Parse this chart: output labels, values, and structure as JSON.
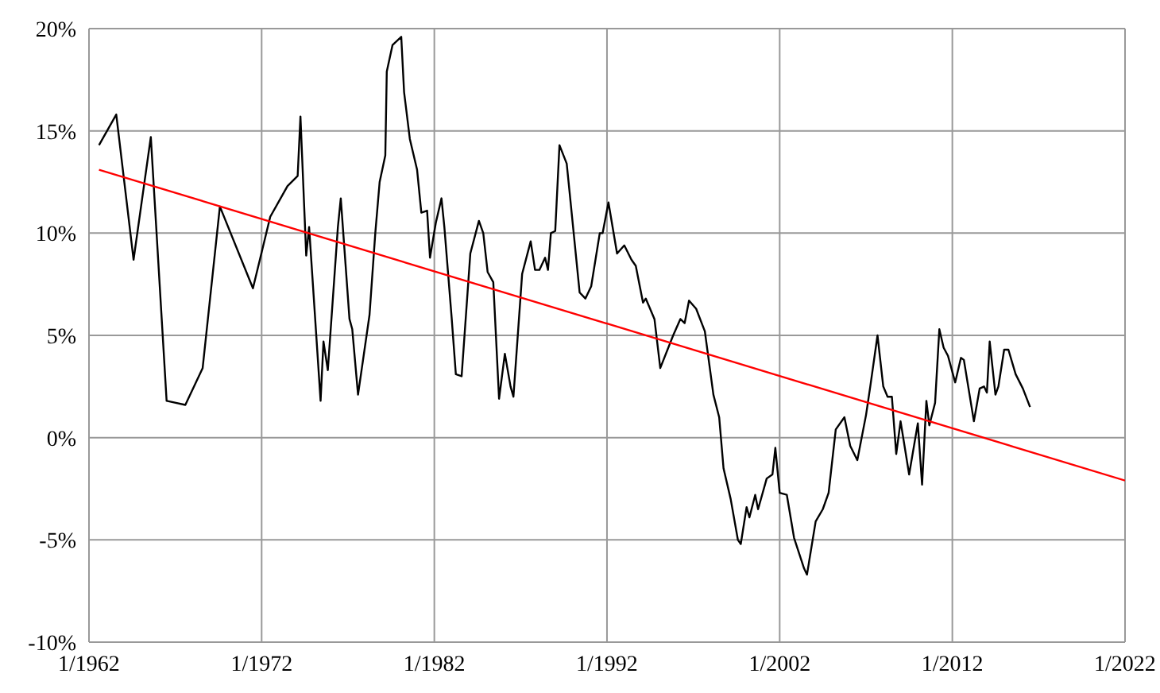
{
  "chart_data": {
    "type": "line",
    "xlim": [
      "1962-01",
      "2022-01"
    ],
    "xticks": [
      {
        "value": "1962-01",
        "label": "1/1962"
      },
      {
        "value": "1972-01",
        "label": "1/1972"
      },
      {
        "value": "1982-01",
        "label": "1/1982"
      },
      {
        "value": "1992-01",
        "label": "1/1992"
      },
      {
        "value": "2002-01",
        "label": "1/2002"
      },
      {
        "value": "2012-01",
        "label": "1/2012"
      },
      {
        "value": "2022-01",
        "label": "1/2022"
      }
    ],
    "ylim": [
      -10,
      20
    ],
    "yticks": [
      {
        "value": -10,
        "label": "-10%"
      },
      {
        "value": -5,
        "label": "-5%"
      },
      {
        "value": 0,
        "label": "0%"
      },
      {
        "value": 5,
        "label": "5%"
      },
      {
        "value": 10,
        "label": "10%"
      },
      {
        "value": 15,
        "label": "15%"
      },
      {
        "value": 20,
        "label": "20%"
      }
    ],
    "grid": true,
    "marker": "none",
    "line_style": "solid",
    "series": [
      {
        "color": "#000000",
        "x": [
          "1962-08",
          "1963-08",
          "1964-08",
          "1965-08",
          "1966-07",
          "1967-08",
          "1968-08",
          "1969-08",
          "1971-07",
          "1972-07",
          "1973-07",
          "1974-02",
          "1974-04",
          "1974-08",
          "1974-10",
          "1975-06",
          "1975-08",
          "1975-11",
          "1976-06",
          "1976-08",
          "1977-02",
          "1977-04",
          "1977-08",
          "1978-04",
          "1978-08",
          "1978-11",
          "1979-03",
          "1979-04",
          "1979-08",
          "1980-02",
          "1980-04",
          "1980-08",
          "1981-01",
          "1981-04",
          "1981-08",
          "1981-10",
          "1982-02",
          "1982-06",
          "1982-08",
          "1983-01",
          "1983-04",
          "1983-08",
          "1984-02",
          "1984-08",
          "1984-11",
          "1985-02",
          "1985-06",
          "1985-10",
          "1986-02",
          "1986-06",
          "1986-08",
          "1987-02",
          "1987-08",
          "1987-11",
          "1988-02",
          "1988-06",
          "1988-08",
          "1988-10",
          "1989-01",
          "1989-04",
          "1989-09",
          "1989-11",
          "1990-06",
          "1990-10",
          "1991-02",
          "1991-08",
          "1991-10",
          "1992-02",
          "1992-08",
          "1993-01",
          "1993-06",
          "1993-09",
          "1994-02",
          "1994-04",
          "1994-10",
          "1995-02",
          "1995-11",
          "1996-04",
          "1996-07",
          "1996-10",
          "1997-03",
          "1997-09",
          "1998-03",
          "1998-07",
          "1998-10",
          "1999-03",
          "1999-08",
          "1999-10",
          "2000-02",
          "2000-04",
          "2000-08",
          "2000-10",
          "2001-04",
          "2001-08",
          "2001-10",
          "2002-01",
          "2002-06",
          "2002-11",
          "2003-06",
          "2003-08",
          "2004-02",
          "2004-07",
          "2004-11",
          "2005-04",
          "2005-10",
          "2006-02",
          "2006-07",
          "2007-01",
          "2007-04",
          "2007-09",
          "2008-01",
          "2008-04",
          "2008-07",
          "2008-10",
          "2009-01",
          "2009-07",
          "2010-01",
          "2010-04",
          "2010-07",
          "2010-09",
          "2011-01",
          "2011-04",
          "2011-07",
          "2011-10",
          "2012-03",
          "2012-07",
          "2012-09",
          "2013-04",
          "2013-08",
          "2013-11",
          "2014-01",
          "2014-03",
          "2014-07",
          "2014-09",
          "2015-01",
          "2015-04",
          "2015-09",
          "2016-02",
          "2016-07"
        ],
        "values": [
          14.3,
          15.8,
          8.7,
          14.7,
          1.8,
          1.6,
          3.4,
          11.3,
          7.3,
          10.8,
          12.3,
          12.8,
          15.7,
          8.9,
          10.3,
          1.8,
          4.7,
          3.3,
          10.3,
          11.7,
          5.8,
          5.3,
          2.1,
          6.0,
          10.0,
          12.5,
          13.8,
          17.9,
          19.2,
          19.6,
          16.9,
          14.6,
          13.1,
          11.0,
          11.1,
          8.8,
          10.5,
          11.7,
          10.3,
          5.9,
          3.1,
          3.0,
          9.0,
          10.6,
          10.0,
          8.1,
          7.6,
          1.9,
          4.1,
          2.5,
          2.0,
          8.0,
          9.6,
          8.2,
          8.2,
          8.8,
          8.2,
          10.0,
          10.1,
          14.3,
          13.4,
          12.0,
          7.1,
          6.8,
          7.4,
          10.0,
          10.0,
          11.5,
          9.0,
          9.4,
          8.7,
          8.4,
          6.6,
          6.8,
          5.8,
          3.4,
          5.0,
          5.8,
          5.6,
          6.7,
          6.3,
          5.2,
          2.1,
          1.0,
          -1.5,
          -3.0,
          -5.0,
          -5.2,
          -3.4,
          -3.9,
          -2.8,
          -3.5,
          -2.0,
          -1.8,
          -0.5,
          -2.7,
          -2.8,
          -4.9,
          -6.4,
          -6.7,
          -4.1,
          -3.5,
          -2.7,
          0.4,
          1.0,
          -0.4,
          -1.1,
          1.1,
          2.5,
          5.0,
          2.5,
          2.0,
          2.0,
          -0.8,
          0.8,
          -1.8,
          0.7,
          -2.3,
          1.8,
          0.6,
          1.7,
          5.3,
          4.4,
          4.0,
          2.7,
          3.9,
          3.8,
          0.8,
          2.4,
          2.5,
          2.2,
          4.7,
          2.1,
          2.5,
          4.3,
          4.3,
          3.1,
          2.4,
          1.5
        ]
      },
      {
        "color": "#ff0000",
        "x": [
          "1962-08",
          "2022-01"
        ],
        "values": [
          13.1,
          -2.1
        ]
      }
    ]
  }
}
